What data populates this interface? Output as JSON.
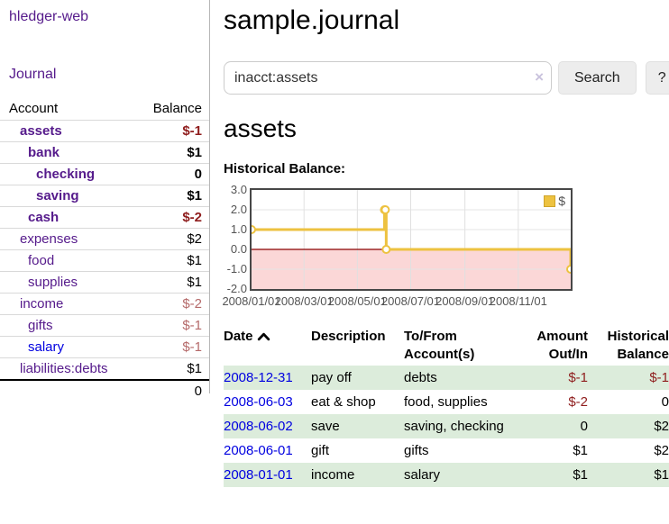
{
  "app": {
    "title": "hledger-web"
  },
  "sidebar": {
    "nav": {
      "journal_label": "Journal"
    },
    "accounts_table": {
      "headers": {
        "account": "Account",
        "balance": "Balance"
      },
      "rows": [
        {
          "account": "assets",
          "indent": 1,
          "bold": true,
          "link_color": "purple",
          "balance": "$-1",
          "balance_style": "neg-strong"
        },
        {
          "account": "bank",
          "indent": 2,
          "bold": true,
          "link_color": "purple",
          "balance": "$1",
          "balance_style": "pos"
        },
        {
          "account": "checking",
          "indent": 3,
          "bold": true,
          "link_color": "purple",
          "balance": "0",
          "balance_style": "pos"
        },
        {
          "account": "saving",
          "indent": 3,
          "bold": true,
          "link_color": "purple",
          "balance": "$1",
          "balance_style": "pos"
        },
        {
          "account": "cash",
          "indent": 2,
          "bold": true,
          "link_color": "purple",
          "balance": "$-2",
          "balance_style": "neg-strong"
        },
        {
          "account": "expenses",
          "indent": 1,
          "bold": false,
          "link_color": "purple",
          "balance": "$2",
          "balance_style": "pos"
        },
        {
          "account": "food",
          "indent": 2,
          "bold": false,
          "link_color": "purple",
          "balance": "$1",
          "balance_style": "pos"
        },
        {
          "account": "supplies",
          "indent": 2,
          "bold": false,
          "link_color": "purple",
          "balance": "$1",
          "balance_style": "pos"
        },
        {
          "account": "income",
          "indent": 1,
          "bold": false,
          "link_color": "purple",
          "balance": "$-2",
          "balance_style": "neg-soft"
        },
        {
          "account": "gifts",
          "indent": 2,
          "bold": false,
          "link_color": "purple",
          "balance": "$-1",
          "balance_style": "neg-soft"
        },
        {
          "account": "salary",
          "indent": 2,
          "bold": false,
          "link_color": "blue",
          "balance": "$-1",
          "balance_style": "neg-soft"
        },
        {
          "account": "liabilities:debts",
          "indent": 1,
          "bold": false,
          "link_color": "purple",
          "balance": "$1",
          "balance_style": "pos"
        }
      ],
      "total": "0"
    }
  },
  "header": {
    "title": "sample.journal"
  },
  "search": {
    "value": "inacct:assets",
    "clear_icon": "×",
    "button_label": "Search",
    "help_label": "?"
  },
  "account_page": {
    "title": "assets",
    "chart_label": "Historical Balance:"
  },
  "chart_data": {
    "type": "line",
    "step": true,
    "title": "Historical Balance:",
    "legend": {
      "position": "top-right",
      "entries": [
        "$"
      ]
    },
    "series": [
      {
        "name": "$",
        "color": "#EDC240",
        "points": [
          [
            "2008-01-01",
            1.0
          ],
          [
            "2008-06-01",
            2.0
          ],
          [
            "2008-06-02",
            2.0
          ],
          [
            "2008-06-03",
            0.0
          ],
          [
            "2008-12-31",
            -1.0
          ]
        ]
      }
    ],
    "x_range": [
      "2008-01-01",
      "2008-12-31"
    ],
    "ylim": [
      -2.0,
      3.0
    ],
    "y_ticks": [
      "3.0",
      "2.0",
      "1.0",
      "0.0",
      "-1.0",
      "-2.0"
    ],
    "x_ticks": [
      "2008/01/01",
      "2008/03/01",
      "2008/05/01",
      "2008/07/01",
      "2008/09/01",
      "2008/11/01"
    ],
    "grid": true,
    "zero_line_color": "#8b0000",
    "negative_region_fill": "#fbd7d7"
  },
  "register_table": {
    "headers": [
      "Date",
      "Description",
      "To/From Account(s)",
      "Amount Out/In",
      "Historical Balance"
    ],
    "sort": {
      "column": "Date",
      "direction": "asc"
    },
    "rows": [
      {
        "date": "2008-12-31",
        "description": "pay off",
        "accounts": "debts",
        "amount": "$-1",
        "amount_neg": true,
        "balance": "$-1",
        "balance_neg": true,
        "highlight": true
      },
      {
        "date": "2008-06-03",
        "description": "eat & shop",
        "accounts": "food, supplies",
        "amount": "$-2",
        "amount_neg": true,
        "balance": "0",
        "balance_neg": false,
        "highlight": false
      },
      {
        "date": "2008-06-02",
        "description": "save",
        "accounts": "saving, checking",
        "amount": "0",
        "amount_neg": false,
        "balance": "$2",
        "balance_neg": false,
        "highlight": true
      },
      {
        "date": "2008-06-01",
        "description": "gift",
        "accounts": "gifts",
        "amount": "$1",
        "amount_neg": false,
        "balance": "$2",
        "balance_neg": false,
        "highlight": false
      },
      {
        "date": "2008-01-01",
        "description": "income",
        "accounts": "salary",
        "amount": "$1",
        "amount_neg": false,
        "balance": "$1",
        "balance_neg": false,
        "highlight": true
      }
    ]
  },
  "colors": {
    "purple_link": "#551A8B",
    "blue_link": "#0000E0",
    "negative_strong": "#8f1d1d",
    "negative_soft": "#b56a6a",
    "row_highlight": "#dcecdb",
    "series_gold": "#EDC240"
  }
}
